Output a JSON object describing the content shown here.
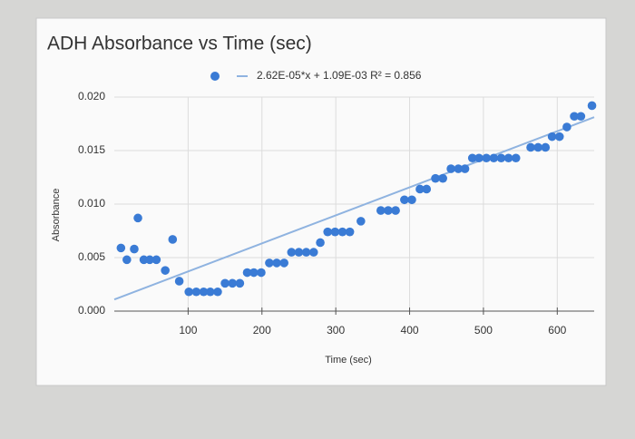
{
  "chart_data": {
    "type": "scatter",
    "title": "ADH Absorbance vs Time (sec)",
    "x_label": "Time (sec)",
    "y_label": "Absorbance",
    "series": [
      {
        "color": "#3a7bd5",
        "x": [
          9,
          17,
          27,
          32,
          40,
          48,
          57,
          69,
          79,
          88,
          101,
          111,
          121,
          130,
          140,
          150,
          160,
          170,
          180,
          189,
          199,
          210,
          220,
          230,
          240,
          250,
          260,
          270,
          279,
          289,
          299,
          309,
          319,
          334,
          361,
          371,
          381,
          393,
          403,
          414,
          423,
          435,
          445,
          456,
          466,
          475,
          485,
          494,
          504,
          514,
          524,
          534,
          544,
          564,
          574,
          584,
          593,
          603,
          613,
          623,
          632,
          647
        ],
        "values": [
          0.0059,
          0.0048,
          0.0058,
          0.0087,
          0.0048,
          0.0048,
          0.0048,
          0.0038,
          0.0067,
          0.0028,
          0.0018,
          0.0018,
          0.0018,
          0.0018,
          0.0018,
          0.0026,
          0.0026,
          0.0026,
          0.0036,
          0.0036,
          0.0036,
          0.0045,
          0.0045,
          0.0045,
          0.0055,
          0.0055,
          0.0055,
          0.0055,
          0.0064,
          0.0074,
          0.0074,
          0.0074,
          0.0074,
          0.0084,
          0.0094,
          0.0094,
          0.0094,
          0.0104,
          0.0104,
          0.0114,
          0.0114,
          0.0124,
          0.0124,
          0.0133,
          0.0133,
          0.0133,
          0.0143,
          0.0143,
          0.0143,
          0.0143,
          0.0143,
          0.0143,
          0.0143,
          0.0153,
          0.0153,
          0.0153,
          0.0163,
          0.0163,
          0.0172,
          0.0182,
          0.0182,
          0.0192
        ]
      }
    ],
    "trendline": {
      "slope": 2.62e-05,
      "intercept": 0.00109,
      "color": "#8fb3e0",
      "label": "2.62E-05*x + 1.09E-03 R² = 0.856"
    },
    "xlim": [
      0,
      650
    ],
    "xticks": [
      100,
      200,
      300,
      400,
      500,
      600
    ],
    "ylim": [
      0,
      0.02
    ],
    "yticks": [
      {
        "value": 0,
        "label": "0.000"
      },
      {
        "value": 0.005,
        "label": "0.005"
      },
      {
        "value": 0.01,
        "label": "0.010"
      },
      {
        "value": 0.015,
        "label": "0.015"
      },
      {
        "value": 0.02,
        "label": "0.020"
      }
    ],
    "grid": true
  }
}
